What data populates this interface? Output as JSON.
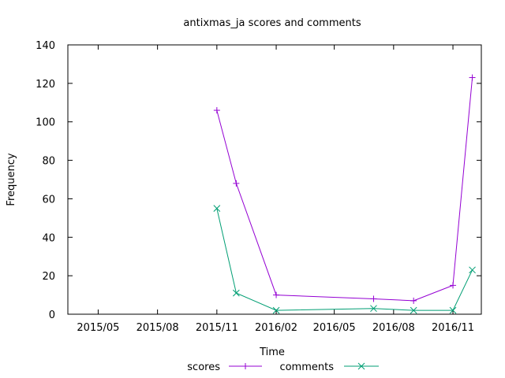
{
  "chart_data": {
    "type": "line",
    "title": "antixmas_ja scores and comments",
    "xlabel": "Time",
    "ylabel": "Frequency",
    "ylim": [
      0,
      140
    ],
    "xlim": [
      "2015-03-15",
      "2016-12-15"
    ],
    "yticks": [
      0,
      20,
      40,
      60,
      80,
      100,
      120,
      140
    ],
    "xticks": [
      {
        "label": "2015/05",
        "date": "2015-05-01"
      },
      {
        "label": "2015/08",
        "date": "2015-08-01"
      },
      {
        "label": "2015/11",
        "date": "2015-11-01"
      },
      {
        "label": "2016/02",
        "date": "2016-02-01"
      },
      {
        "label": "2016/05",
        "date": "2016-05-01"
      },
      {
        "label": "2016/08",
        "date": "2016-08-01"
      },
      {
        "label": "2016/11",
        "date": "2016-11-01"
      }
    ],
    "grid": false,
    "legend": "bottom",
    "series": [
      {
        "name": "scores",
        "color": "#9400d3",
        "marker": "plus",
        "points": [
          [
            "2015-11-01",
            106
          ],
          [
            "2015-12-01",
            68
          ],
          [
            "2016-02-01",
            10
          ],
          [
            "2016-07-01",
            8
          ],
          [
            "2016-09-01",
            7
          ],
          [
            "2016-11-01",
            15
          ],
          [
            "2016-12-01",
            123
          ]
        ]
      },
      {
        "name": "comments",
        "color": "#009e73",
        "marker": "cross",
        "points": [
          [
            "2015-11-01",
            55
          ],
          [
            "2015-12-01",
            11
          ],
          [
            "2016-02-01",
            2
          ],
          [
            "2016-07-01",
            3
          ],
          [
            "2016-09-01",
            2
          ],
          [
            "2016-11-01",
            2
          ],
          [
            "2016-12-01",
            23
          ]
        ]
      }
    ]
  }
}
